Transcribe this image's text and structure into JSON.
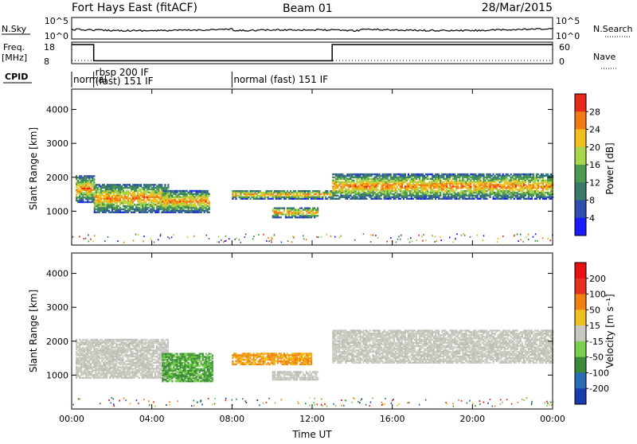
{
  "header": {
    "site": "Fort Hays East (fitACF)",
    "beam": "Beam 01",
    "date": "28/Mar/2015"
  },
  "top_panels": {
    "nsky_label": "N.Sky",
    "nsky_ticks": [
      "10^5",
      "10^0"
    ],
    "nsearch_label": "N.Search",
    "nsearch_ticks": [
      "10^5",
      "10^0"
    ],
    "freq_label": "Freq.",
    "freq_unit": "[MHz]",
    "freq_ticks": [
      "18",
      "8"
    ],
    "nave_label": "Nave",
    "nave_ticks": [
      "60",
      "0"
    ],
    "cpid_label": "CPID",
    "cpid_segments": [
      {
        "line1": "normal",
        "line2": "",
        "start": 0,
        "end": 1.1
      },
      {
        "line1": "rbsp 200 IF",
        "line2": "(fast) 151 IF",
        "start": 1.1,
        "end": 8.0
      },
      {
        "line1": "normal (fast) 151 IF",
        "line2": "",
        "start": 8.0,
        "end": 24
      }
    ]
  },
  "chart_data": [
    {
      "type": "heatmap",
      "title": "Power",
      "ylabel": "Slant Range [km]",
      "x_range_hours": [
        0,
        24
      ],
      "ylim": [
        0,
        4600
      ],
      "yticks": [
        "1000",
        "2000",
        "3000",
        "4000"
      ],
      "colorbar_label": "Power [dB]",
      "colorbar_ticks": [
        "4",
        "8",
        "12",
        "16",
        "20",
        "24",
        "28"
      ],
      "colorbar_colors": [
        "#1a1aff",
        "#2e4fb0",
        "#3a7a6a",
        "#4a9a50",
        "#a8d64a",
        "#f2c01e",
        "#f07a14",
        "#e8281a"
      ],
      "echo_regions_hours_km": [
        {
          "t0": 0.2,
          "t1": 1.1,
          "r0": 1250,
          "r1": 2050
        },
        {
          "t0": 1.1,
          "t1": 4.8,
          "r0": 950,
          "r1": 1800
        },
        {
          "t0": 4.5,
          "t1": 6.9,
          "r0": 950,
          "r1": 1600
        },
        {
          "t0": 8.0,
          "t1": 13.0,
          "r0": 1350,
          "r1": 1600
        },
        {
          "t0": 10.0,
          "t1": 12.3,
          "r0": 800,
          "r1": 1100
        },
        {
          "t0": 13.0,
          "t1": 24.0,
          "r0": 1350,
          "r1": 2100
        }
      ]
    },
    {
      "type": "heatmap",
      "title": "Velocity",
      "ylabel": "Slant Range [km]",
      "x_range_hours": [
        0,
        24
      ],
      "ylim": [
        0,
        4600
      ],
      "yticks": [
        "1000",
        "2000",
        "3000",
        "4000"
      ],
      "xlabel": "Time UT",
      "xticks": [
        "00:00",
        "04:00",
        "08:00",
        "12:00",
        "16:00",
        "20:00",
        "00:00"
      ],
      "colorbar_label": "Velocity [m s⁻¹]",
      "colorbar_ticks": [
        "200",
        "100",
        "50",
        "15",
        "-15",
        "-50",
        "-100",
        "-200"
      ],
      "colorbar_colors": [
        "#1a3ab0",
        "#2a6ab8",
        "#3a8a3a",
        "#7ad04a",
        "#c8c8c0",
        "#f0c020",
        "#f08010",
        "#e83020",
        "#e81010"
      ],
      "echo_regions_hours_km": [
        {
          "t0": 0.2,
          "t1": 4.8,
          "r0": 900,
          "r1": 2050,
          "color": "gray"
        },
        {
          "t0": 4.5,
          "t1": 7.0,
          "r0": 800,
          "r1": 1650,
          "color": "green"
        },
        {
          "t0": 8.0,
          "t1": 12.0,
          "r0": 1300,
          "r1": 1650,
          "color": "orange"
        },
        {
          "t0": 10.0,
          "t1": 12.3,
          "r0": 850,
          "r1": 1100,
          "color": "gray"
        },
        {
          "t0": 13.0,
          "t1": 24.0,
          "r0": 1350,
          "r1": 2300,
          "color": "gray"
        }
      ]
    }
  ]
}
